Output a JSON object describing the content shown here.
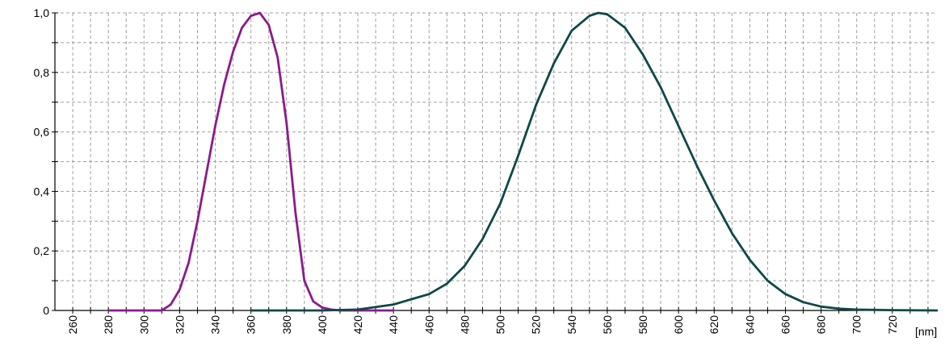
{
  "chart_data": {
    "type": "line",
    "xlabel": "[nm]",
    "ylabel": "",
    "title": "",
    "xlim": [
      250,
      745
    ],
    "ylim": [
      0,
      1
    ],
    "grid": true,
    "x_ticks": [
      "260",
      "280",
      "300",
      "320",
      "340",
      "360",
      "380",
      "400",
      "420",
      "440",
      "460",
      "480",
      "500",
      "520",
      "540",
      "560",
      "580",
      "600",
      "620",
      "640",
      "660",
      "680",
      "700",
      "720"
    ],
    "y_ticks": [
      "0",
      "0,2",
      "0,4",
      "0,6",
      "0,8",
      "1,0"
    ],
    "series": [
      {
        "color": "#8b1a8b",
        "x": [
          280,
          300,
          310,
          315,
          320,
          325,
          330,
          335,
          340,
          345,
          350,
          355,
          360,
          365,
          370,
          375,
          380,
          385,
          390,
          395,
          400,
          405,
          410,
          420,
          430,
          440
        ],
        "y": [
          0,
          0,
          0,
          0.02,
          0.07,
          0.16,
          0.3,
          0.46,
          0.62,
          0.76,
          0.87,
          0.95,
          0.99,
          1.0,
          0.96,
          0.85,
          0.63,
          0.33,
          0.1,
          0.03,
          0.01,
          0.003,
          0,
          0,
          0,
          0
        ]
      },
      {
        "color": "#0f4848",
        "x": [
          360,
          380,
          400,
          420,
          440,
          460,
          470,
          480,
          490,
          500,
          510,
          520,
          530,
          540,
          550,
          555,
          560,
          570,
          580,
          590,
          600,
          610,
          620,
          630,
          640,
          650,
          660,
          670,
          680,
          690,
          700,
          720,
          745
        ],
        "y": [
          0,
          0,
          0,
          0.003,
          0.02,
          0.055,
          0.09,
          0.15,
          0.24,
          0.36,
          0.52,
          0.69,
          0.83,
          0.94,
          0.99,
          1.0,
          0.995,
          0.95,
          0.86,
          0.75,
          0.62,
          0.49,
          0.37,
          0.26,
          0.17,
          0.1,
          0.055,
          0.028,
          0.013,
          0.006,
          0.003,
          0.001,
          0
        ]
      }
    ]
  }
}
